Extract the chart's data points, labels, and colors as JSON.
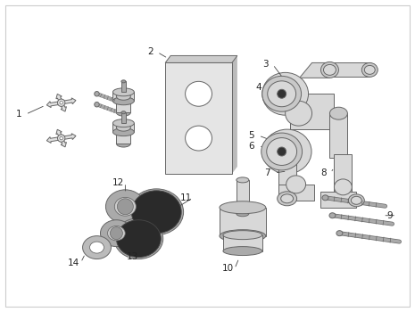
{
  "background_color": "#ffffff",
  "border_color": "#cccccc",
  "part_color": "#d8d8d8",
  "part_outline": "#666666",
  "label_color": "#222222",
  "label_fontsize": 7.5,
  "handle_color": "#e0e0e0",
  "dark_seal": "#2a2a2a",
  "mid_gray": "#aaaaaa",
  "light_gray": "#c8c8c8"
}
